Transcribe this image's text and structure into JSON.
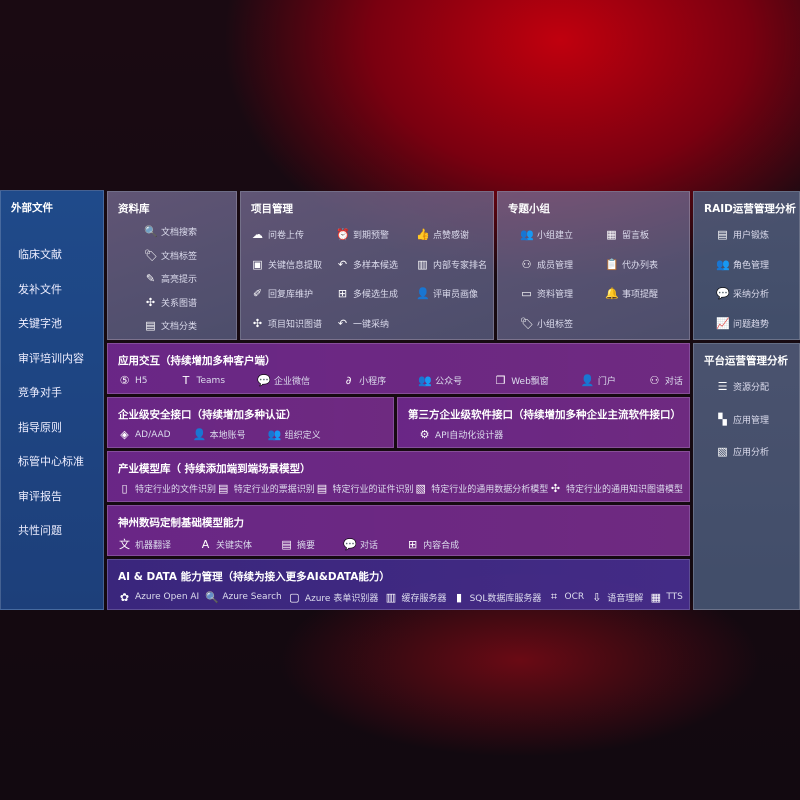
{
  "sidebar": {
    "title": "外部文件",
    "items": [
      "临床文献",
      "发补文件",
      "关键字池",
      "审评培训内容",
      "竞争对手",
      "指导原则",
      "标管中心标准",
      "审评报告",
      "共性问题"
    ]
  },
  "library": {
    "title": "资料库",
    "items": [
      [
        "doc-search-icon",
        "文档搜索"
      ],
      [
        "tag-icon",
        "文档标签"
      ],
      [
        "pen-icon",
        "高亮提示"
      ],
      [
        "graph-icon",
        "关系图谱"
      ],
      [
        "doc-class-icon",
        "文档分类"
      ]
    ]
  },
  "project": {
    "title": "项目管理",
    "cols": [
      [
        [
          "upload-icon",
          "问卷上传"
        ],
        [
          "doc-icon",
          "关键信息提取"
        ],
        [
          "edit-icon",
          "回复库维护"
        ],
        [
          "graph-icon",
          "项目知识图谱"
        ]
      ],
      [
        [
          "alarm-icon",
          "到期预警"
        ],
        [
          "reply-icon",
          "多样本候选"
        ],
        [
          "puzzle-icon",
          "多候选生成"
        ],
        [
          "reply-icon",
          "一键采纳"
        ]
      ],
      [
        [
          "thumbs-up-icon",
          "点赞感谢"
        ],
        [
          "rank-icon",
          "内部专家排名"
        ],
        [
          "user-icon",
          "评审员画像"
        ]
      ]
    ]
  },
  "group": {
    "title": "专题小组",
    "cols": [
      [
        [
          "users-icon",
          "小组建立"
        ],
        [
          "user-add-icon",
          "成员管理"
        ],
        [
          "folder-icon",
          "资料管理"
        ],
        [
          "tag-icon",
          "小组标签"
        ]
      ],
      [
        [
          "bbs-icon",
          "留言板"
        ],
        [
          "clipboard-icon",
          "代办列表"
        ],
        [
          "bell-icon",
          "事项提醒"
        ]
      ]
    ]
  },
  "raid": {
    "title": "RAID运营管理分析",
    "items": [
      [
        "id-card-icon",
        "用户锻炼"
      ],
      [
        "users-icon",
        "角色管理"
      ],
      [
        "qa-icon",
        "采纳分析"
      ],
      [
        "trend-icon",
        "问题趋势"
      ]
    ]
  },
  "platform": {
    "title": "平台运营管理分析",
    "items": [
      [
        "list-icon",
        "资源分配"
      ],
      [
        "apps-icon",
        "应用管理"
      ],
      [
        "chart-icon",
        "应用分析"
      ]
    ]
  },
  "app": {
    "title": "应用交互（持续增加多种客户端）",
    "items": [
      [
        "html5-icon",
        "H5"
      ],
      [
        "teams-icon",
        "Teams"
      ],
      [
        "wechat-icon",
        "企业微信"
      ],
      [
        "miniprogram-icon",
        "小程序"
      ],
      [
        "users-icon",
        "公众号"
      ],
      [
        "window-icon",
        "Web飘窗"
      ],
      [
        "portal-icon",
        "门户"
      ],
      [
        "chat-users-icon",
        "对话"
      ]
    ]
  },
  "security": {
    "title": "企业级安全接口（持续增加多种认证）",
    "items": [
      [
        "ad-icon",
        "AD/AAD"
      ],
      [
        "user-icon",
        "本地账号"
      ],
      [
        "org-icon",
        "组织定义"
      ]
    ]
  },
  "thirdparty": {
    "title": "第三方企业级软件接口（持续增加多种企业主流软件接口）",
    "items": [
      [
        "gear-icon",
        "API自动化设计器"
      ]
    ]
  },
  "industry": {
    "title": "产业模型库（ 持续添加端到端场景模型）",
    "items": [
      [
        "file-icon",
        "特定行业的文件识别"
      ],
      [
        "receipt-icon",
        "特定行业的票据识别"
      ],
      [
        "id-card-icon",
        "特定行业的证件识别"
      ],
      [
        "chart-icon",
        "特定行业的通用数据分析模型"
      ],
      [
        "graph-icon",
        "特定行业的通用知识图谱模型"
      ]
    ]
  },
  "base": {
    "title": "神州数码定制基础模型能力",
    "items": [
      [
        "translate-icon",
        "机器翻译"
      ],
      [
        "entity-icon",
        "关键实体"
      ],
      [
        "summary-icon",
        "摘要"
      ],
      [
        "chat-icon",
        "对话"
      ],
      [
        "puzzle-icon",
        "内容合成"
      ]
    ]
  },
  "ai": {
    "title": "AI & DATA 能力管理（持续为接入更多AI&DATA能力）",
    "items": [
      [
        "openai-icon",
        "Azure Open AI"
      ],
      [
        "search-icon",
        "Azure Search"
      ],
      [
        "form-icon",
        "Azure 表单识别器"
      ],
      [
        "cache-icon",
        "缓存服务器"
      ],
      [
        "sql-icon",
        "SQL数据库服务器"
      ],
      [
        "ocr-icon",
        "OCR"
      ],
      [
        "speech-icon",
        "语音理解"
      ],
      [
        "tts-icon",
        "TTS"
      ]
    ]
  }
}
